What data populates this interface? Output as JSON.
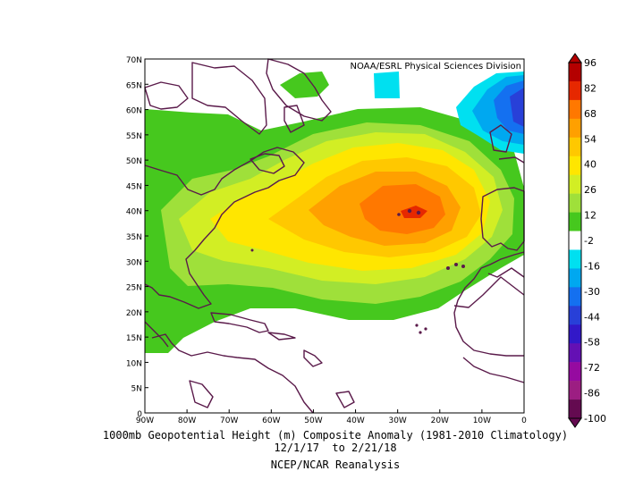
{
  "plot": {
    "attribution": "NOAA/ESRL Physical Sciences Division",
    "lat_ticks": [
      "0",
      "5N",
      "10N",
      "15N",
      "20N",
      "25N",
      "30N",
      "35N",
      "40N",
      "45N",
      "50N",
      "55N",
      "60N",
      "65N",
      "70N"
    ],
    "lon_ticks": [
      "90W",
      "80W",
      "70W",
      "60W",
      "50W",
      "40W",
      "30W",
      "20W",
      "10W",
      "0"
    ],
    "lon_range": [
      -90,
      0
    ],
    "lat_range": [
      0,
      70
    ]
  },
  "colorbar": {
    "labels": [
      "96",
      "82",
      "68",
      "54",
      "40",
      "26",
      "12",
      "-2",
      "-16",
      "-30",
      "-44",
      "-58",
      "-72",
      "-86",
      "-100"
    ],
    "colors": [
      "#b40000",
      "#e62800",
      "#ff7800",
      "#ffa000",
      "#ffc800",
      "#ffe600",
      "#d2ee24",
      "#9fe03a",
      "#46c81e",
      "#ffffff",
      "#00e0f0",
      "#00a8f0",
      "#1470f0",
      "#2840d8",
      "#3218c8",
      "#6410b4",
      "#960aa0",
      "#9c1e82",
      "#640a50"
    ]
  },
  "caption": {
    "line1": "1000mb Geopotential Height (m) Composite Anomaly (1981-2010 Climatology)",
    "line2": "12/1/17  to 2/21/18",
    "line3": "NCEP/NCAR Reanalysis"
  }
}
